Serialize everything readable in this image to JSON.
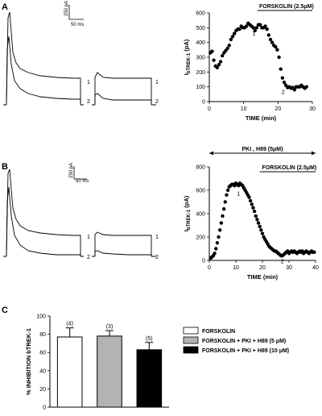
{
  "panel_labels": {
    "a": "A",
    "b": "B",
    "c": "C"
  },
  "panel_a": {
    "scale_bar": {
      "y": "250 pA",
      "x": "50 ms"
    },
    "trace_labels": {
      "t1_left": "1",
      "t2_left": "2",
      "t1_right": "1",
      "t2_right": "2"
    }
  },
  "panel_b": {
    "scale_bar": {
      "y": "250 pA",
      "x": "50 ms"
    },
    "trace_labels": {
      "t1_left": "1",
      "t2_left": "2",
      "t1_right": "1",
      "t2_right": "2"
    }
  },
  "chart_data": [
    {
      "id": "A-timecourse",
      "type": "scatter",
      "xlabel": "TIME (min)",
      "ylabel": "IbTREK-1 (pA)",
      "ylabel_main": "I",
      "ylabel_sub": "bTREK-1",
      "ylabel_unit": " (pA)",
      "xlim": [
        0,
        30
      ],
      "ylim": [
        0,
        600
      ],
      "xticks": [
        0,
        10,
        20,
        30
      ],
      "yticks": [
        0,
        100,
        200,
        300,
        400,
        500,
        600
      ],
      "annotation_bars": [
        {
          "label": "FORSKOLIN (2.5μM)",
          "x_start": 14,
          "x_end": 30
        }
      ],
      "point_labels": [
        {
          "text": "1",
          "x": 13,
          "y": 490
        },
        {
          "text": "2",
          "x": 21.5,
          "y": 95
        }
      ],
      "x": [
        0.3,
        0.8,
        1.3,
        1.8,
        2.3,
        2.8,
        3.3,
        3.8,
        4.3,
        4.8,
        5.3,
        5.8,
        6.3,
        6.8,
        7.3,
        7.8,
        8.3,
        8.8,
        9.3,
        9.8,
        10.3,
        10.8,
        11.3,
        11.8,
        12.3,
        12.8,
        13.3,
        13.8,
        14.3,
        14.8,
        15.3,
        15.8,
        16.3,
        16.8,
        17.3,
        17.8,
        18.3,
        18.8,
        19.3,
        19.8,
        20.3,
        20.8,
        21.3,
        21.8,
        22.3,
        22.8,
        23.3,
        23.8,
        24.3,
        24.8,
        25.3,
        25.8,
        26.3,
        26.8,
        27.3,
        27.8,
        28.3
      ],
      "y": [
        330,
        340,
        280,
        240,
        230,
        250,
        270,
        310,
        330,
        345,
        360,
        380,
        420,
        440,
        460,
        480,
        490,
        490,
        510,
        500,
        500,
        510,
        530,
        520,
        510,
        500,
        480,
        500,
        520,
        520,
        500,
        500,
        510,
        490,
        450,
        420,
        400,
        380,
        370,
        350,
        300,
        220,
        160,
        130,
        110,
        95,
        100,
        90,
        95,
        80,
        100,
        100,
        100,
        110,
        100,
        90,
        100
      ]
    },
    {
      "id": "B-timecourse",
      "type": "scatter",
      "xlabel": "TIME (min)",
      "ylabel": "IbTREK-1 (pA)",
      "ylabel_main": "I",
      "ylabel_sub": "bTREK-1",
      "ylabel_unit": " (pA)",
      "xlim": [
        0,
        40
      ],
      "ylim": [
        0,
        800
      ],
      "xticks": [
        0,
        10,
        20,
        30,
        40
      ],
      "yticks": [
        0,
        200,
        400,
        600,
        800
      ],
      "annotation_bars": [
        {
          "label": "PKI , H89 (5μM)",
          "x_start": 0,
          "x_end": 40,
          "arrows": true
        },
        {
          "label": "FORSKOLIN (2.5μM)",
          "x_start": 19,
          "x_end": 40
        }
      ],
      "point_labels": [
        {
          "text": "1",
          "x": 11,
          "y": 610
        },
        {
          "text": "2",
          "x": 27.5,
          "y": 30
        }
      ],
      "x": [
        0.5,
        1,
        1.5,
        2,
        2.5,
        3,
        3.5,
        4,
        4.5,
        5,
        5.5,
        6,
        6.5,
        7,
        7.5,
        8,
        8.5,
        9,
        9.5,
        10,
        10.5,
        11,
        11.5,
        12,
        12.5,
        13,
        13.5,
        14,
        14.5,
        15,
        15.5,
        16,
        16.5,
        17,
        17.5,
        18,
        18.5,
        19,
        19.5,
        20,
        20.5,
        21,
        21.5,
        22,
        22.5,
        23,
        23.5,
        24,
        24.5,
        25,
        25.5,
        26,
        26.5,
        27,
        27.5,
        28,
        28.5,
        29,
        29.5,
        30,
        30.5,
        31,
        31.5,
        32,
        32.5,
        33,
        33.5,
        34,
        34.5,
        35,
        35.5,
        36,
        36.5,
        37,
        37.5,
        38,
        38.5,
        39,
        39.5
      ],
      "y": [
        20,
        30,
        40,
        60,
        100,
        150,
        200,
        260,
        320,
        380,
        440,
        500,
        560,
        600,
        630,
        640,
        650,
        650,
        640,
        660,
        650,
        640,
        660,
        650,
        640,
        620,
        600,
        580,
        560,
        540,
        510,
        480,
        450,
        420,
        380,
        350,
        320,
        290,
        260,
        230,
        200,
        180,
        160,
        140,
        120,
        110,
        100,
        90,
        80,
        80,
        70,
        60,
        50,
        40,
        40,
        50,
        60,
        70,
        80,
        60,
        70,
        80,
        70,
        80,
        70,
        60,
        70,
        80,
        70,
        80,
        60,
        70,
        80,
        70,
        60,
        70,
        80,
        70,
        70
      ]
    },
    {
      "id": "C-bars",
      "type": "bar",
      "ylabel": "% INHIBITION  bTREK-1",
      "ylim": [
        0,
        100
      ],
      "yticks": [
        0,
        20,
        40,
        60,
        80,
        100
      ],
      "categories": [
        "FORSKOLIN",
        "FORSKOLIN + PKI + H89 (5 μM)",
        "FORSKOLIN + PKI + H89 (10 μM)"
      ],
      "values": [
        77,
        78,
        63
      ],
      "errors": [
        10,
        6,
        8
      ],
      "n_labels": [
        "(4)",
        "(3)",
        "(5)"
      ],
      "colors": [
        "#ffffff",
        "#b3b3b3",
        "#000000"
      ]
    }
  ]
}
